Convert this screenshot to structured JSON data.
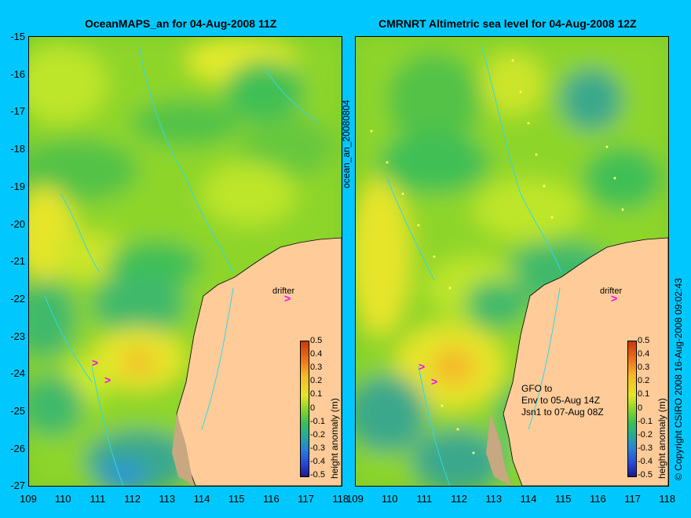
{
  "left_title": "OceanMAPS_an for 04-Aug-2008 11Z",
  "right_title": "CMRNRT Altimetric sea level  for 04-Aug-2008 12Z",
  "y_labels": [
    "-15",
    "-16",
    "-17",
    "-18",
    "-19",
    "-20",
    "-21",
    "-22",
    "-23",
    "-24",
    "-25",
    "-26",
    "-27"
  ],
  "x_labels": [
    "109",
    "110",
    "111",
    "112",
    "113",
    "114",
    "115",
    "116",
    "117",
    "118"
  ],
  "right_x_labels": [
    "109",
    "110",
    "111",
    "112",
    "113",
    "114",
    "115",
    "116",
    "117",
    "118"
  ],
  "colorbar": {
    "ticks": [
      "0.5",
      "0.4",
      "0.3",
      "0.2",
      "0.1",
      "0",
      "-0.1",
      "-0.2",
      "-0.3",
      "-0.4",
      "-0.5"
    ],
    "label": "height anomaly (m)"
  },
  "vertical_mid_label": "ocean_an_20080804",
  "copyright": "© Copyright CSIRO 2008   16-Aug-2008 09:02:43",
  "drifter_label": "drifter",
  "gfo_text": [
    "GFO to",
    "Env to 05-Aug 14Z",
    "Jsn1 to 07-Aug 08Z"
  ],
  "colors": {
    "background": "#00c8ff",
    "land": "#ffcc99",
    "coast_detail": "#c8a880",
    "marker": "#ff00ff"
  }
}
